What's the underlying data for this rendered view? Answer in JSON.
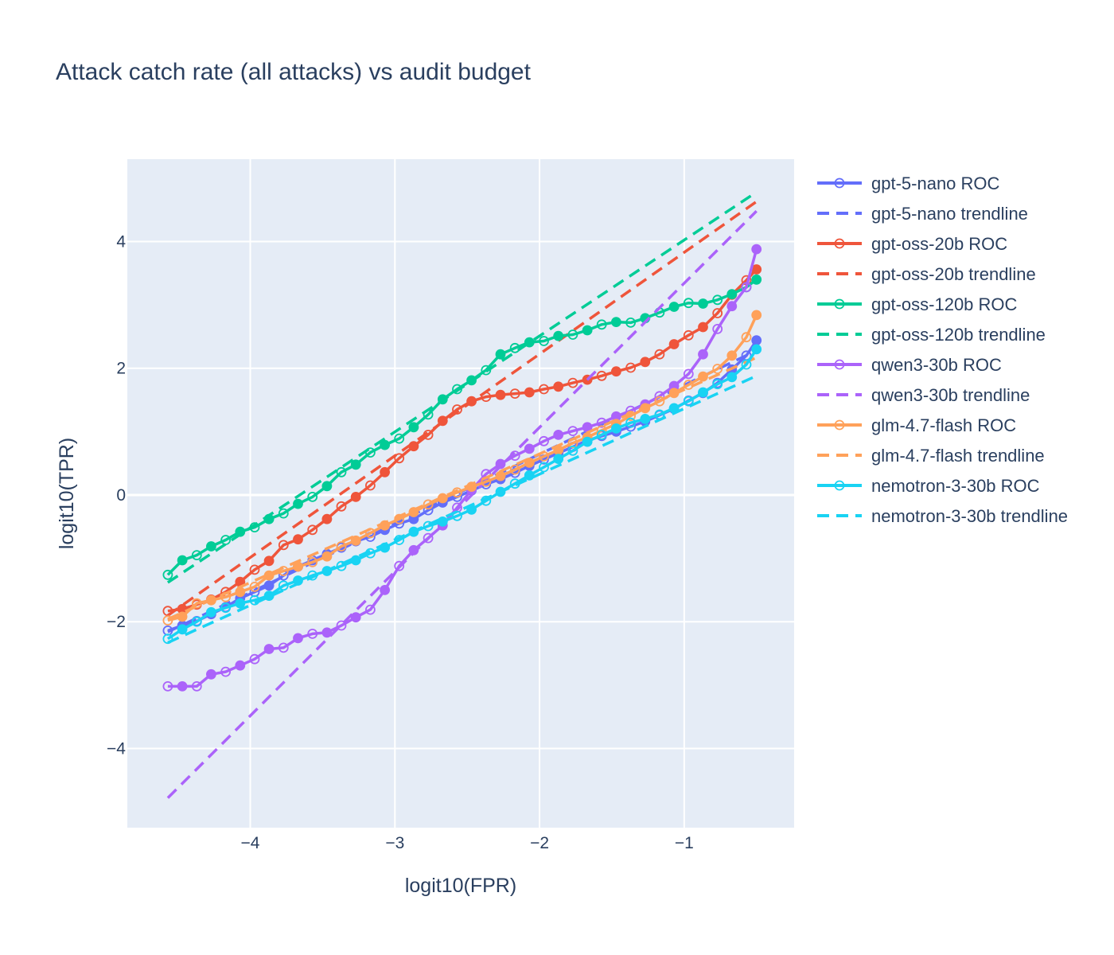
{
  "chart_data": {
    "type": "line",
    "title": "Attack catch rate (all attacks) vs audit budget",
    "xlabel": "logit10(FPR)",
    "ylabel": "logit10(TPR)",
    "xlim": [
      -4.85,
      -0.24
    ],
    "ylim": [
      -5.25,
      5.3
    ],
    "x_ticks": [
      -4,
      -3,
      -2,
      -1
    ],
    "x_tick_labels": [
      "−4",
      "−3",
      "−2",
      "−1"
    ],
    "y_ticks": [
      -4,
      -2,
      0,
      2,
      4
    ],
    "y_tick_labels": [
      "−4",
      "−2",
      "0",
      "2",
      "4"
    ],
    "grid": true,
    "legend_position": "right",
    "series": [
      {
        "name": "gpt-5-nano ROC",
        "color": "#636efa",
        "marker": "circle",
        "points": [
          [
            -4.57,
            -2.14
          ],
          [
            -4.47,
            -2.06
          ],
          [
            -4.37,
            -1.99
          ],
          [
            -4.27,
            -1.88
          ],
          [
            -4.17,
            -1.77
          ],
          [
            -4.07,
            -1.63
          ],
          [
            -3.97,
            -1.53
          ],
          [
            -3.87,
            -1.43
          ],
          [
            -3.77,
            -1.27
          ],
          [
            -3.67,
            -1.13
          ],
          [
            -3.57,
            -1.03
          ],
          [
            -3.47,
            -0.93
          ],
          [
            -3.37,
            -0.83
          ],
          [
            -3.27,
            -0.73
          ],
          [
            -3.17,
            -0.66
          ],
          [
            -3.07,
            -0.55
          ],
          [
            -2.97,
            -0.45
          ],
          [
            -2.87,
            -0.38
          ],
          [
            -2.77,
            -0.24
          ],
          [
            -2.67,
            -0.12
          ],
          [
            -2.57,
            -0.03
          ],
          [
            -2.47,
            0.07
          ],
          [
            -2.37,
            0.17
          ],
          [
            -2.27,
            0.25
          ],
          [
            -2.17,
            0.35
          ],
          [
            -2.07,
            0.46
          ],
          [
            -1.97,
            0.56
          ],
          [
            -1.87,
            0.66
          ],
          [
            -1.77,
            0.76
          ],
          [
            -1.67,
            0.86
          ],
          [
            -1.57,
            0.93
          ],
          [
            -1.47,
            1.0
          ],
          [
            -1.37,
            1.08
          ],
          [
            -1.27,
            1.16
          ],
          [
            -1.17,
            1.26
          ],
          [
            -1.07,
            1.36
          ],
          [
            -0.97,
            1.49
          ],
          [
            -0.87,
            1.61
          ],
          [
            -0.77,
            1.77
          ],
          [
            -0.67,
            1.98
          ],
          [
            -0.57,
            2.2
          ],
          [
            -0.5,
            2.44
          ]
        ]
      },
      {
        "name": "gpt-5-nano trendline",
        "color": "#636efa",
        "dash": true,
        "points": [
          [
            -4.57,
            -2.16
          ],
          [
            -0.5,
            2.28
          ]
        ]
      },
      {
        "name": "gpt-oss-20b ROC",
        "color": "#ef553b",
        "marker": "circle",
        "points": [
          [
            -4.57,
            -1.83
          ],
          [
            -4.47,
            -1.8
          ],
          [
            -4.37,
            -1.73
          ],
          [
            -4.27,
            -1.65
          ],
          [
            -4.17,
            -1.53
          ],
          [
            -4.07,
            -1.37
          ],
          [
            -3.97,
            -1.18
          ],
          [
            -3.87,
            -1.04
          ],
          [
            -3.77,
            -0.79
          ],
          [
            -3.67,
            -0.7
          ],
          [
            -3.57,
            -0.55
          ],
          [
            -3.47,
            -0.38
          ],
          [
            -3.37,
            -0.18
          ],
          [
            -3.27,
            -0.03
          ],
          [
            -3.17,
            0.15
          ],
          [
            -3.07,
            0.36
          ],
          [
            -2.97,
            0.58
          ],
          [
            -2.87,
            0.77
          ],
          [
            -2.77,
            0.95
          ],
          [
            -2.67,
            1.17
          ],
          [
            -2.57,
            1.35
          ],
          [
            -2.47,
            1.48
          ],
          [
            -2.37,
            1.55
          ],
          [
            -2.27,
            1.58
          ],
          [
            -2.17,
            1.6
          ],
          [
            -2.07,
            1.62
          ],
          [
            -1.97,
            1.67
          ],
          [
            -1.87,
            1.71
          ],
          [
            -1.77,
            1.77
          ],
          [
            -1.67,
            1.82
          ],
          [
            -1.57,
            1.88
          ],
          [
            -1.47,
            1.95
          ],
          [
            -1.37,
            2.01
          ],
          [
            -1.27,
            2.1
          ],
          [
            -1.17,
            2.22
          ],
          [
            -1.07,
            2.38
          ],
          [
            -0.97,
            2.52
          ],
          [
            -0.87,
            2.65
          ],
          [
            -0.77,
            2.87
          ],
          [
            -0.67,
            3.16
          ],
          [
            -0.57,
            3.39
          ],
          [
            -0.5,
            3.56
          ]
        ]
      },
      {
        "name": "gpt-oss-20b trendline",
        "color": "#ef553b",
        "dash": true,
        "points": [
          [
            -4.57,
            -1.9
          ],
          [
            -0.5,
            4.63
          ]
        ]
      },
      {
        "name": "gpt-oss-120b ROC",
        "color": "#00cc96",
        "marker": "circle",
        "points": [
          [
            -4.57,
            -1.26
          ],
          [
            -4.47,
            -1.03
          ],
          [
            -4.37,
            -0.95
          ],
          [
            -4.27,
            -0.81
          ],
          [
            -4.17,
            -0.71
          ],
          [
            -4.07,
            -0.58
          ],
          [
            -3.97,
            -0.51
          ],
          [
            -3.87,
            -0.38
          ],
          [
            -3.77,
            -0.29
          ],
          [
            -3.67,
            -0.14
          ],
          [
            -3.57,
            -0.03
          ],
          [
            -3.47,
            0.14
          ],
          [
            -3.37,
            0.36
          ],
          [
            -3.27,
            0.48
          ],
          [
            -3.17,
            0.67
          ],
          [
            -3.07,
            0.79
          ],
          [
            -2.97,
            0.89
          ],
          [
            -2.87,
            1.07
          ],
          [
            -2.77,
            1.27
          ],
          [
            -2.67,
            1.51
          ],
          [
            -2.57,
            1.67
          ],
          [
            -2.47,
            1.81
          ],
          [
            -2.37,
            1.97
          ],
          [
            -2.27,
            2.22
          ],
          [
            -2.17,
            2.32
          ],
          [
            -2.07,
            2.41
          ],
          [
            -1.97,
            2.43
          ],
          [
            -1.87,
            2.51
          ],
          [
            -1.77,
            2.53
          ],
          [
            -1.67,
            2.6
          ],
          [
            -1.57,
            2.69
          ],
          [
            -1.47,
            2.73
          ],
          [
            -1.37,
            2.72
          ],
          [
            -1.27,
            2.79
          ],
          [
            -1.17,
            2.88
          ],
          [
            -1.07,
            2.97
          ],
          [
            -0.97,
            3.03
          ],
          [
            -0.87,
            3.02
          ],
          [
            -0.77,
            3.08
          ],
          [
            -0.67,
            3.17
          ],
          [
            -0.57,
            3.28
          ],
          [
            -0.5,
            3.4
          ]
        ]
      },
      {
        "name": "gpt-oss-120b trendline",
        "color": "#00cc96",
        "dash": true,
        "points": [
          [
            -4.57,
            -1.38
          ],
          [
            -0.5,
            4.78
          ]
        ]
      },
      {
        "name": "qwen3-30b ROC",
        "color": "#ab63fa",
        "marker": "circle",
        "points": [
          [
            -4.57,
            -3.02
          ],
          [
            -4.47,
            -3.02
          ],
          [
            -4.37,
            -3.02
          ],
          [
            -4.27,
            -2.83
          ],
          [
            -4.17,
            -2.79
          ],
          [
            -4.07,
            -2.69
          ],
          [
            -3.97,
            -2.59
          ],
          [
            -3.87,
            -2.43
          ],
          [
            -3.77,
            -2.41
          ],
          [
            -3.67,
            -2.26
          ],
          [
            -3.57,
            -2.19
          ],
          [
            -3.47,
            -2.17
          ],
          [
            -3.37,
            -2.06
          ],
          [
            -3.27,
            -1.93
          ],
          [
            -3.17,
            -1.81
          ],
          [
            -3.07,
            -1.5
          ],
          [
            -2.97,
            -1.12
          ],
          [
            -2.87,
            -0.87
          ],
          [
            -2.77,
            -0.68
          ],
          [
            -2.67,
            -0.48
          ],
          [
            -2.57,
            -0.2
          ],
          [
            -2.47,
            0.08
          ],
          [
            -2.37,
            0.33
          ],
          [
            -2.27,
            0.49
          ],
          [
            -2.17,
            0.62
          ],
          [
            -2.07,
            0.73
          ],
          [
            -1.97,
            0.85
          ],
          [
            -1.87,
            0.95
          ],
          [
            -1.77,
            1.01
          ],
          [
            -1.67,
            1.07
          ],
          [
            -1.57,
            1.14
          ],
          [
            -1.47,
            1.24
          ],
          [
            -1.37,
            1.33
          ],
          [
            -1.27,
            1.43
          ],
          [
            -1.17,
            1.56
          ],
          [
            -1.07,
            1.72
          ],
          [
            -0.97,
            1.91
          ],
          [
            -0.87,
            2.22
          ],
          [
            -0.77,
            2.62
          ],
          [
            -0.67,
            2.98
          ],
          [
            -0.57,
            3.28
          ],
          [
            -0.5,
            3.88
          ]
        ]
      },
      {
        "name": "qwen3-30b trendline",
        "color": "#ab63fa",
        "dash": true,
        "points": [
          [
            -4.57,
            -4.78
          ],
          [
            -0.5,
            4.48
          ]
        ]
      },
      {
        "name": "glm-4.7-flash ROC",
        "color": "#ffa15a",
        "marker": "circle",
        "points": [
          [
            -4.57,
            -1.98
          ],
          [
            -4.47,
            -1.92
          ],
          [
            -4.37,
            -1.71
          ],
          [
            -4.27,
            -1.66
          ],
          [
            -4.17,
            -1.61
          ],
          [
            -4.07,
            -1.53
          ],
          [
            -3.97,
            -1.45
          ],
          [
            -3.87,
            -1.27
          ],
          [
            -3.77,
            -1.2
          ],
          [
            -3.67,
            -1.13
          ],
          [
            -3.57,
            -1.06
          ],
          [
            -3.47,
            -0.97
          ],
          [
            -3.37,
            -0.81
          ],
          [
            -3.27,
            -0.72
          ],
          [
            -3.17,
            -0.6
          ],
          [
            -3.07,
            -0.48
          ],
          [
            -2.97,
            -0.38
          ],
          [
            -2.87,
            -0.27
          ],
          [
            -2.77,
            -0.15
          ],
          [
            -2.67,
            -0.05
          ],
          [
            -2.57,
            0.04
          ],
          [
            -2.47,
            0.13
          ],
          [
            -2.37,
            0.21
          ],
          [
            -2.27,
            0.3
          ],
          [
            -2.17,
            0.4
          ],
          [
            -2.07,
            0.51
          ],
          [
            -1.97,
            0.61
          ],
          [
            -1.87,
            0.71
          ],
          [
            -1.77,
            0.82
          ],
          [
            -1.67,
            0.91
          ],
          [
            -1.57,
            1.02
          ],
          [
            -1.47,
            1.12
          ],
          [
            -1.37,
            1.25
          ],
          [
            -1.27,
            1.37
          ],
          [
            -1.17,
            1.48
          ],
          [
            -1.07,
            1.61
          ],
          [
            -0.97,
            1.74
          ],
          [
            -0.87,
            1.87
          ],
          [
            -0.77,
            1.99
          ],
          [
            -0.67,
            2.2
          ],
          [
            -0.57,
            2.49
          ],
          [
            -0.5,
            2.84
          ]
        ]
      },
      {
        "name": "glm-4.7-flash trendline",
        "color": "#ffa15a",
        "dash": true,
        "points": [
          [
            -4.57,
            -1.96
          ],
          [
            -0.5,
            2.17
          ]
        ]
      },
      {
        "name": "nemotron-3-30b ROC",
        "color": "#19d3f3",
        "marker": "circle",
        "points": [
          [
            -4.57,
            -2.27
          ],
          [
            -4.47,
            -2.12
          ],
          [
            -4.37,
            -2.0
          ],
          [
            -4.27,
            -1.85
          ],
          [
            -4.17,
            -1.78
          ],
          [
            -4.07,
            -1.71
          ],
          [
            -3.97,
            -1.66
          ],
          [
            -3.87,
            -1.59
          ],
          [
            -3.77,
            -1.43
          ],
          [
            -3.67,
            -1.35
          ],
          [
            -3.57,
            -1.27
          ],
          [
            -3.47,
            -1.2
          ],
          [
            -3.37,
            -1.12
          ],
          [
            -3.27,
            -1.03
          ],
          [
            -3.17,
            -0.92
          ],
          [
            -3.07,
            -0.83
          ],
          [
            -2.97,
            -0.71
          ],
          [
            -2.87,
            -0.58
          ],
          [
            -2.77,
            -0.49
          ],
          [
            -2.67,
            -0.42
          ],
          [
            -2.57,
            -0.33
          ],
          [
            -2.47,
            -0.23
          ],
          [
            -2.37,
            -0.09
          ],
          [
            -2.27,
            0.05
          ],
          [
            -2.17,
            0.18
          ],
          [
            -2.07,
            0.31
          ],
          [
            -1.97,
            0.44
          ],
          [
            -1.87,
            0.57
          ],
          [
            -1.77,
            0.7
          ],
          [
            -1.67,
            0.84
          ],
          [
            -1.57,
            0.95
          ],
          [
            -1.47,
            1.05
          ],
          [
            -1.37,
            1.14
          ],
          [
            -1.27,
            1.2
          ],
          [
            -1.17,
            1.27
          ],
          [
            -1.07,
            1.37
          ],
          [
            -0.97,
            1.48
          ],
          [
            -0.87,
            1.62
          ],
          [
            -0.77,
            1.75
          ],
          [
            -0.67,
            1.86
          ],
          [
            -0.57,
            2.06
          ],
          [
            -0.5,
            2.3
          ]
        ]
      },
      {
        "name": "nemotron-3-30b trendline",
        "color": "#19d3f3",
        "dash": true,
        "points": [
          [
            -4.57,
            -2.33
          ],
          [
            -0.5,
            1.88
          ]
        ]
      }
    ]
  }
}
